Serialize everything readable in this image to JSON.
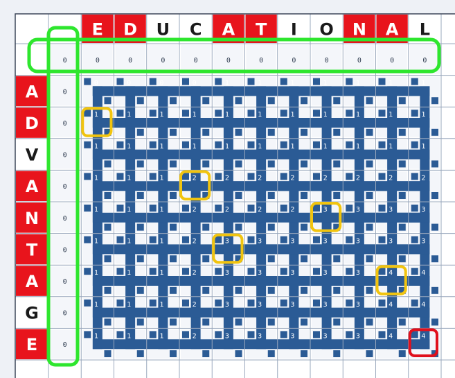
{
  "top_word": {
    "letters": [
      "E",
      "D",
      "U",
      "C",
      "A",
      "T",
      "I",
      "O",
      "N",
      "A",
      "L"
    ],
    "highlighted": [
      true,
      true,
      false,
      false,
      true,
      true,
      false,
      false,
      true,
      true,
      false
    ]
  },
  "left_word": {
    "letters": [
      "A",
      "D",
      "V",
      "A",
      "N",
      "T",
      "A",
      "G",
      "E"
    ],
    "highlighted": [
      true,
      true,
      false,
      true,
      true,
      true,
      true,
      false,
      true
    ]
  },
  "base_row": [
    "0",
    "0",
    "0",
    "0",
    "0",
    "0",
    "0",
    "0",
    "0",
    "0",
    "0",
    "0"
  ],
  "base_col": [
    "0",
    "0",
    "0",
    "0",
    "0",
    "0",
    "0",
    "0",
    "0",
    "0"
  ],
  "table": [
    [
      "0",
      "0",
      "0",
      "0",
      "1",
      "1",
      "1",
      "1",
      "1",
      "1",
      "1"
    ],
    [
      "1",
      "1",
      "1",
      "1",
      "1",
      "1",
      "1",
      "1",
      "1",
      "1",
      "1"
    ],
    [
      "1",
      "1",
      "1",
      "1",
      "1",
      "1",
      "1",
      "1",
      "1",
      "1",
      "1"
    ],
    [
      "1",
      "1",
      "1",
      "2",
      "2",
      "2",
      "2",
      "2",
      "2",
      "2",
      "2"
    ],
    [
      "1",
      "1",
      "1",
      "2",
      "2",
      "2",
      "2",
      "3",
      "3",
      "3",
      "3"
    ],
    [
      "1",
      "1",
      "1",
      "2",
      "3",
      "3",
      "3",
      "3",
      "3",
      "3",
      "3"
    ],
    [
      "1",
      "1",
      "1",
      "2",
      "3",
      "3",
      "3",
      "3",
      "3",
      "4",
      "4"
    ],
    [
      "1",
      "1",
      "1",
      "2",
      "3",
      "3",
      "3",
      "3",
      "3",
      "4",
      "4"
    ],
    [
      "1",
      "1",
      "1",
      "2",
      "3",
      "3",
      "3",
      "3",
      "3",
      "4",
      "4"
    ]
  ],
  "colors": {
    "letter_highlight": "#e8141c",
    "path_blue": "#2b5b95",
    "outline_green": "#2ee62e",
    "box_yellow": "#f1c40f",
    "box_red": "#e0101c"
  }
}
